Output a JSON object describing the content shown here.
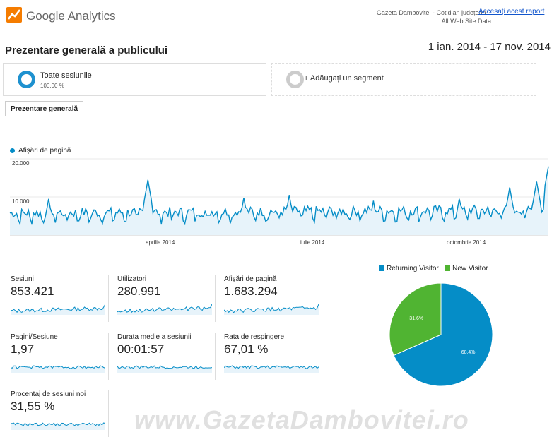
{
  "header": {
    "logo_text": "Google Analytics",
    "site_name": "Gazeta Damboviței - Cotidian județean...",
    "view_name": "All Web Site Data",
    "access_link": "Accesați acest raport"
  },
  "page": {
    "title": "Prezentare generală a publicului",
    "date_range": "1 ian. 2014 - 17 nov. 2014"
  },
  "segments": {
    "active_title": "Toate sesiunile",
    "active_percent": "100,00 %",
    "add_label": "+ Adăugați un segment"
  },
  "tabs": {
    "overview": "Prezentare generală"
  },
  "chart_data": [
    {
      "type": "line",
      "series": [
        {
          "name": "Afișări de pagină"
        }
      ],
      "yticks": [
        "20.000",
        "10.000"
      ],
      "ylim": [
        0,
        20000
      ],
      "xticks": [
        "aprilie 2014",
        "iulie 2014",
        "octombrie 2014"
      ],
      "x_range": [
        "2014-01-01",
        "2014-11-17"
      ],
      "baseline": 5200,
      "peaks": [
        {
          "date": "2014-01-24",
          "value": 9500
        },
        {
          "date": "2014-03-24",
          "value": 14500
        },
        {
          "date": "2014-05-20",
          "value": 9800
        },
        {
          "date": "2014-06-16",
          "value": 10500
        },
        {
          "date": "2014-08-05",
          "value": 9000
        },
        {
          "date": "2014-09-25",
          "value": 9500
        },
        {
          "date": "2014-10-25",
          "value": 12500
        },
        {
          "date": "2014-11-10",
          "value": 14000
        },
        {
          "date": "2014-11-17",
          "value": 18000
        }
      ],
      "color": "#058dc7"
    },
    {
      "type": "pie",
      "series": [
        {
          "name": "Returning Visitor",
          "value": 68.4,
          "label": "68.4%",
          "color": "#058dc7"
        },
        {
          "name": "New Visitor",
          "value": 31.6,
          "label": "31.6%",
          "color": "#50b432"
        }
      ]
    }
  ],
  "metrics": [
    {
      "label": "Sesiuni",
      "value": "853.421"
    },
    {
      "label": "Utilizatori",
      "value": "280.991"
    },
    {
      "label": "Afișări de pagină",
      "value": "1.683.294"
    },
    {
      "label": "Pagini/Sesiune",
      "value": "1,97"
    },
    {
      "label": "Durata medie a sesiunii",
      "value": "00:01:57"
    },
    {
      "label": "Rata de respingere",
      "value": "67,01 %"
    },
    {
      "label": "Procentaj de sesiuni noi",
      "value": "31,55 %"
    }
  ],
  "watermark": "www.GazetaDambovitei.ro"
}
